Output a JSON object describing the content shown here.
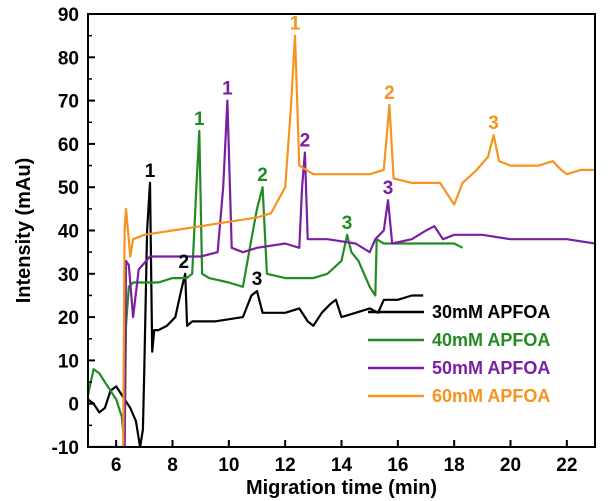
{
  "chart_data": {
    "type": "line",
    "xlabel": "Migration time (min)",
    "ylabel": "Intensity (mAu)",
    "xlim": [
      5,
      23
    ],
    "ylim": [
      -10,
      90
    ],
    "xticks": [
      "6",
      "8",
      "10",
      "12",
      "14",
      "16",
      "18",
      "20",
      "22"
    ],
    "yticks": [
      "-10",
      "0",
      "10",
      "20",
      "30",
      "40",
      "50",
      "60",
      "70",
      "80",
      "90"
    ],
    "legend": {
      "placement": "bottom-right"
    },
    "series": [
      {
        "name": "30mM APFOA",
        "color": "#000000",
        "points": [
          [
            5.0,
            1
          ],
          [
            5.2,
            0
          ],
          [
            5.4,
            -2
          ],
          [
            5.6,
            -1
          ],
          [
            5.8,
            3
          ],
          [
            6.0,
            4
          ],
          [
            6.2,
            2
          ],
          [
            6.5,
            -1
          ],
          [
            6.7,
            -4
          ],
          [
            6.85,
            -10
          ],
          [
            6.95,
            -6
          ],
          [
            7.0,
            8
          ],
          [
            7.1,
            40
          ],
          [
            7.2,
            51
          ],
          [
            7.28,
            12
          ],
          [
            7.35,
            17
          ],
          [
            7.5,
            17
          ],
          [
            7.8,
            18
          ],
          [
            8.1,
            20
          ],
          [
            8.3,
            26
          ],
          [
            8.45,
            30
          ],
          [
            8.52,
            18
          ],
          [
            8.7,
            19
          ],
          [
            9.5,
            19
          ],
          [
            10.5,
            20
          ],
          [
            10.8,
            25
          ],
          [
            11.0,
            26
          ],
          [
            11.2,
            21
          ],
          [
            12.0,
            21
          ],
          [
            12.5,
            22
          ],
          [
            12.8,
            19
          ],
          [
            13.0,
            18
          ],
          [
            13.3,
            21
          ],
          [
            13.6,
            23
          ],
          [
            13.8,
            24
          ],
          [
            14.0,
            20
          ],
          [
            14.5,
            21
          ],
          [
            15.0,
            22
          ],
          [
            15.3,
            21
          ],
          [
            15.5,
            24
          ],
          [
            16.0,
            24
          ],
          [
            16.5,
            25
          ],
          [
            16.9,
            25
          ]
        ],
        "peak_labels": [
          {
            "text": "1",
            "x": 7.2,
            "y": 51
          },
          {
            "text": "2",
            "x": 8.4,
            "y": 30
          },
          {
            "text": "3",
            "x": 11.0,
            "y": 26
          }
        ]
      },
      {
        "name": "40mM APFOA",
        "color": "#228B22",
        "points": [
          [
            5.0,
            2
          ],
          [
            5.2,
            8
          ],
          [
            5.4,
            7
          ],
          [
            5.6,
            5
          ],
          [
            5.8,
            3
          ],
          [
            6.0,
            1
          ],
          [
            6.2,
            -3
          ],
          [
            6.3,
            -10
          ],
          [
            6.35,
            18
          ],
          [
            6.45,
            27
          ],
          [
            6.6,
            28
          ],
          [
            7.0,
            28
          ],
          [
            7.5,
            28
          ],
          [
            8.0,
            29
          ],
          [
            8.5,
            29
          ],
          [
            8.7,
            30
          ],
          [
            8.85,
            50
          ],
          [
            8.95,
            63
          ],
          [
            9.05,
            30
          ],
          [
            9.3,
            29
          ],
          [
            10.0,
            28
          ],
          [
            10.5,
            27
          ],
          [
            10.8,
            38
          ],
          [
            11.0,
            45
          ],
          [
            11.2,
            50
          ],
          [
            11.35,
            30
          ],
          [
            12.0,
            29
          ],
          [
            13.0,
            29
          ],
          [
            13.5,
            30
          ],
          [
            14.0,
            33
          ],
          [
            14.2,
            39
          ],
          [
            14.35,
            35
          ],
          [
            14.6,
            33
          ],
          [
            15.0,
            27
          ],
          [
            15.2,
            25
          ],
          [
            15.25,
            38
          ],
          [
            15.5,
            37
          ],
          [
            16.0,
            37
          ],
          [
            16.5,
            37
          ],
          [
            17.0,
            37
          ],
          [
            18.0,
            37
          ],
          [
            18.3,
            36
          ]
        ],
        "peak_labels": [
          {
            "text": "1",
            "x": 8.95,
            "y": 63
          },
          {
            "text": "2",
            "x": 11.2,
            "y": 50
          },
          {
            "text": "3",
            "x": 14.2,
            "y": 39
          }
        ]
      },
      {
        "name": "50mM APFOA",
        "color": "#7B1FA2",
        "points": [
          [
            5.0,
            -10
          ],
          [
            6.0,
            -10
          ],
          [
            6.3,
            -10
          ],
          [
            6.35,
            33
          ],
          [
            6.45,
            32
          ],
          [
            6.6,
            20
          ],
          [
            6.8,
            31
          ],
          [
            7.2,
            34
          ],
          [
            8.0,
            34
          ],
          [
            9.0,
            34
          ],
          [
            9.6,
            35
          ],
          [
            9.8,
            50
          ],
          [
            9.95,
            70
          ],
          [
            10.1,
            36
          ],
          [
            10.5,
            35
          ],
          [
            11.0,
            36
          ],
          [
            12.0,
            37
          ],
          [
            12.5,
            36
          ],
          [
            12.6,
            50
          ],
          [
            12.7,
            58
          ],
          [
            12.8,
            38
          ],
          [
            13.5,
            38
          ],
          [
            14.5,
            37
          ],
          [
            15.0,
            35
          ],
          [
            15.2,
            38
          ],
          [
            15.5,
            40
          ],
          [
            15.65,
            47
          ],
          [
            15.8,
            37
          ],
          [
            16.5,
            38
          ],
          [
            17.0,
            40
          ],
          [
            17.3,
            41
          ],
          [
            17.6,
            38
          ],
          [
            18.0,
            39
          ],
          [
            18.5,
            39
          ],
          [
            19.0,
            39
          ],
          [
            20.0,
            38
          ],
          [
            21.0,
            38
          ],
          [
            22.0,
            38
          ],
          [
            23.0,
            37
          ]
        ],
        "peak_labels": [
          {
            "text": "1",
            "x": 9.95,
            "y": 70
          },
          {
            "text": "2",
            "x": 12.7,
            "y": 58
          },
          {
            "text": "3",
            "x": 15.65,
            "y": 47
          }
        ]
      },
      {
        "name": "60mM APFOA",
        "color": "#F7931E",
        "points": [
          [
            6.25,
            -10
          ],
          [
            6.3,
            40
          ],
          [
            6.35,
            45
          ],
          [
            6.5,
            34
          ],
          [
            6.6,
            38
          ],
          [
            7.0,
            39
          ],
          [
            8.0,
            40
          ],
          [
            9.0,
            41
          ],
          [
            10.0,
            42
          ],
          [
            11.0,
            43
          ],
          [
            11.5,
            44
          ],
          [
            12.0,
            50
          ],
          [
            12.2,
            68
          ],
          [
            12.35,
            85
          ],
          [
            12.5,
            55
          ],
          [
            13.0,
            53
          ],
          [
            14.0,
            53
          ],
          [
            15.0,
            53
          ],
          [
            15.5,
            54
          ],
          [
            15.7,
            69
          ],
          [
            15.85,
            52
          ],
          [
            16.5,
            51
          ],
          [
            17.0,
            51
          ],
          [
            17.5,
            51
          ],
          [
            17.9,
            47
          ],
          [
            18.0,
            46
          ],
          [
            18.3,
            51
          ],
          [
            18.8,
            54
          ],
          [
            19.2,
            57
          ],
          [
            19.4,
            62
          ],
          [
            19.6,
            56
          ],
          [
            20.0,
            55
          ],
          [
            21.0,
            55
          ],
          [
            21.5,
            56
          ],
          [
            21.8,
            54
          ],
          [
            22.0,
            53
          ],
          [
            22.5,
            54
          ],
          [
            23.0,
            54
          ]
        ],
        "peak_labels": [
          {
            "text": "1",
            "x": 12.35,
            "y": 85
          },
          {
            "text": "2",
            "x": 15.7,
            "y": 69
          },
          {
            "text": "3",
            "x": 19.4,
            "y": 62
          }
        ]
      }
    ]
  }
}
